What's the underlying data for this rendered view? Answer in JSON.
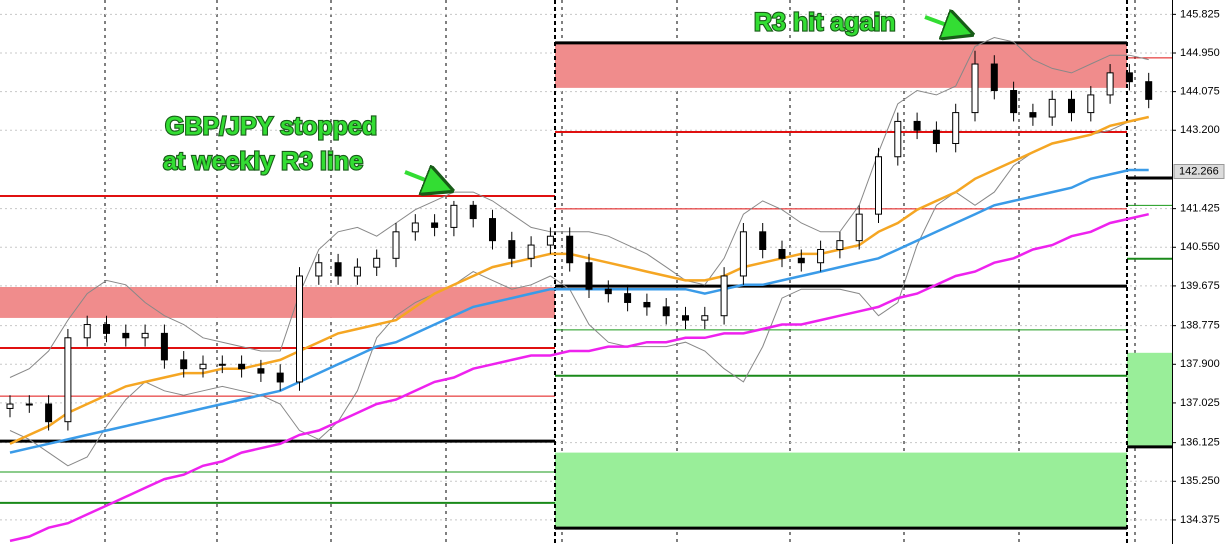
{
  "chart_data": {
    "type": "candlestick",
    "ylim": [
      133.83,
      146.15
    ],
    "yticks": [
      145.825,
      {
        "value": 144.95,
        "label": "144.950"
      },
      144.075,
      {
        "value": 143.2,
        "label": "143.200"
      },
      141.425,
      {
        "value": 140.55,
        "label": "140.550"
      },
      139.675,
      138.775,
      {
        "value": 137.9,
        "label": "137.900"
      },
      137.025,
      136.125,
      {
        "value": 135.25,
        "label": "135.250"
      },
      134.375
    ],
    "last_price": 142.266,
    "grid": true,
    "up_color": "#ffffff",
    "down_color": "#000000",
    "open": [
      136.9,
      137.0,
      137.0,
      136.6,
      138.5,
      138.8,
      138.6,
      138.5,
      138.6,
      138.0,
      137.8,
      137.9,
      137.9,
      137.8,
      137.7,
      137.5,
      139.9,
      140.2,
      139.9,
      140.1,
      140.3,
      140.9,
      141.1,
      141.0,
      141.5,
      141.2,
      140.7,
      140.3,
      140.6,
      140.8,
      140.2,
      139.6,
      139.5,
      139.3,
      139.2,
      139.0,
      138.9,
      139.0,
      139.9,
      140.9,
      140.5,
      140.3,
      140.2,
      140.5,
      140.7,
      141.3,
      142.6,
      143.4,
      143.2,
      142.9,
      143.6,
      144.7,
      144.1,
      143.6,
      143.5,
      143.9,
      143.6,
      144.0,
      144.5,
      144.3
    ],
    "high": [
      137.2,
      137.2,
      137.2,
      138.7,
      139.0,
      139.0,
      138.8,
      138.8,
      138.8,
      138.2,
      138.1,
      138.1,
      138.1,
      138.0,
      137.9,
      140.1,
      140.4,
      140.4,
      140.3,
      140.5,
      141.1,
      141.3,
      141.3,
      141.6,
      141.6,
      141.4,
      140.9,
      140.8,
      141.0,
      141.0,
      140.4,
      139.8,
      139.7,
      139.5,
      139.4,
      139.2,
      139.2,
      140.1,
      141.1,
      141.1,
      140.7,
      140.5,
      140.7,
      140.9,
      141.5,
      142.8,
      143.6,
      143.6,
      143.4,
      143.8,
      145.0,
      144.9,
      144.3,
      143.8,
      144.1,
      144.1,
      144.2,
      144.7,
      144.7,
      144.5
    ],
    "low": [
      136.7,
      136.8,
      136.4,
      136.4,
      138.3,
      138.4,
      138.3,
      138.3,
      137.8,
      137.6,
      137.6,
      137.7,
      137.6,
      137.5,
      137.3,
      137.3,
      139.7,
      139.7,
      139.7,
      139.9,
      140.1,
      140.7,
      140.8,
      140.8,
      141.0,
      140.5,
      140.1,
      140.1,
      140.4,
      140.0,
      139.4,
      139.3,
      139.1,
      139.0,
      138.8,
      138.7,
      138.7,
      138.8,
      139.7,
      140.3,
      140.1,
      140.0,
      140.0,
      140.3,
      140.5,
      141.1,
      142.4,
      143.0,
      142.7,
      142.7,
      143.4,
      143.9,
      143.4,
      143.3,
      143.3,
      143.4,
      143.4,
      143.8,
      144.1,
      143.7
    ],
    "close": [
      137.0,
      137.0,
      136.6,
      138.5,
      138.8,
      138.6,
      138.5,
      138.6,
      138.0,
      137.8,
      137.9,
      137.9,
      137.8,
      137.7,
      137.5,
      139.9,
      140.2,
      139.9,
      140.1,
      140.3,
      140.9,
      141.1,
      141.0,
      141.5,
      141.2,
      140.7,
      140.3,
      140.6,
      140.8,
      140.2,
      139.6,
      139.5,
      139.3,
      139.2,
      139.0,
      138.9,
      139.0,
      139.9,
      140.9,
      140.5,
      140.3,
      140.2,
      140.5,
      140.7,
      141.3,
      142.6,
      143.4,
      143.2,
      142.9,
      143.6,
      144.7,
      144.1,
      143.6,
      143.5,
      143.9,
      143.6,
      144.0,
      144.5,
      144.3,
      143.9
    ],
    "series": [
      {
        "color": "#888888",
        "values": [
          137.6,
          137.8,
          138.2,
          138.9,
          139.5,
          139.8,
          139.7,
          139.3,
          139.0,
          138.8,
          138.5,
          138.4,
          138.3,
          138.2,
          138.2,
          139.5,
          140.5,
          140.9,
          141.0,
          140.8,
          141.1,
          141.4,
          141.6,
          141.8,
          141.8,
          141.6,
          141.3,
          141.0,
          140.9,
          140.9,
          140.9,
          140.8,
          140.6,
          140.4,
          140.1,
          139.8,
          139.7,
          140.3,
          141.3,
          141.6,
          141.4,
          141.1,
          140.9,
          140.9,
          141.5,
          142.7,
          143.8,
          144.1,
          144.0,
          144.2,
          145.1,
          145.3,
          145.2,
          144.8,
          144.6,
          144.5,
          144.7,
          144.9,
          144.9,
          144.8
        ]
      },
      {
        "color": "#888888",
        "values": [
          136.4,
          136.2,
          135.9,
          135.6,
          135.8,
          136.5,
          137.1,
          137.5,
          137.3,
          137.2,
          137.3,
          137.4,
          137.3,
          137.2,
          137.0,
          136.4,
          136.2,
          136.6,
          137.3,
          138.5,
          139.0,
          139.3,
          139.5,
          139.7,
          140.0,
          139.8,
          139.6,
          139.7,
          139.9,
          139.6,
          138.8,
          138.4,
          138.3,
          138.3,
          138.3,
          138.4,
          138.2,
          137.8,
          137.5,
          138.3,
          139.4,
          139.6,
          139.6,
          139.6,
          139.5,
          139.0,
          139.3,
          140.6,
          141.5,
          141.8,
          141.5,
          141.8,
          142.4,
          142.7,
          142.9,
          143.0,
          143.1,
          143.2,
          143.4,
          143.5
        ]
      },
      {
        "color": "#f5a623",
        "values": [
          136.1,
          136.3,
          136.5,
          136.8,
          137.0,
          137.2,
          137.4,
          137.5,
          137.6,
          137.7,
          137.7,
          137.8,
          137.8,
          137.9,
          138.0,
          138.2,
          138.4,
          138.6,
          138.7,
          138.8,
          138.9,
          139.2,
          139.5,
          139.7,
          139.9,
          140.1,
          140.2,
          140.3,
          140.4,
          140.4,
          140.3,
          140.2,
          140.1,
          140.0,
          139.9,
          139.8,
          139.8,
          139.9,
          140.1,
          140.2,
          140.3,
          140.4,
          140.4,
          140.5,
          140.6,
          140.9,
          141.1,
          141.4,
          141.6,
          141.8,
          142.1,
          142.3,
          142.5,
          142.7,
          142.9,
          143.0,
          143.1,
          143.3,
          143.4,
          143.5
        ]
      },
      {
        "color": "#3a9be8",
        "values": [
          135.9,
          136.0,
          136.1,
          136.2,
          136.3,
          136.4,
          136.5,
          136.6,
          136.7,
          136.8,
          136.9,
          137.0,
          137.1,
          137.2,
          137.3,
          137.5,
          137.7,
          137.9,
          138.1,
          138.3,
          138.4,
          138.6,
          138.8,
          139.0,
          139.2,
          139.3,
          139.4,
          139.5,
          139.6,
          139.6,
          139.6,
          139.6,
          139.6,
          139.6,
          139.6,
          139.6,
          139.5,
          139.6,
          139.7,
          139.7,
          139.8,
          139.9,
          140.0,
          140.1,
          140.2,
          140.3,
          140.5,
          140.7,
          140.9,
          141.1,
          141.3,
          141.5,
          141.6,
          141.7,
          141.8,
          141.9,
          142.1,
          142.2,
          142.3,
          142.3
        ]
      },
      {
        "color": "#ee22ee",
        "values": [
          133.9,
          134.0,
          134.2,
          134.3,
          134.5,
          134.7,
          134.9,
          135.1,
          135.3,
          135.4,
          135.6,
          135.7,
          135.9,
          136.0,
          136.1,
          136.3,
          136.4,
          136.6,
          136.8,
          137.0,
          137.1,
          137.3,
          137.5,
          137.6,
          137.8,
          137.9,
          138.0,
          138.1,
          138.1,
          138.2,
          138.2,
          138.3,
          138.3,
          138.4,
          138.4,
          138.5,
          138.5,
          138.6,
          138.6,
          138.7,
          138.8,
          138.8,
          138.9,
          139.0,
          139.1,
          139.2,
          139.4,
          139.5,
          139.7,
          139.9,
          140.0,
          140.2,
          140.3,
          140.5,
          140.6,
          140.8,
          140.9,
          141.1,
          141.2,
          141.3
        ]
      }
    ],
    "weeks": [
      {
        "zones": [
          {
            "from": 138.95,
            "to": 139.65,
            "color": "#f08c8c"
          }
        ],
        "levels": [
          {
            "value": 141.71,
            "color": "#e01010",
            "style": "normal"
          },
          {
            "value": 138.27,
            "color": "#e01010",
            "style": "normal"
          },
          {
            "value": 137.18,
            "color": "#e01010",
            "style": "thin"
          },
          {
            "value": 136.16,
            "color": "#000000",
            "style": "thick"
          },
          {
            "value": 135.46,
            "color": "#1a9a1a",
            "style": "thin"
          },
          {
            "value": 134.76,
            "color": "#1a8a1a",
            "style": "normal"
          }
        ]
      },
      {
        "zones": [
          {
            "from": 144.16,
            "to": 145.18,
            "color": "#f08c8c"
          },
          {
            "from": 134.19,
            "to": 135.9,
            "color": "#99ee99"
          }
        ],
        "levels": [
          {
            "value": 145.18,
            "color": "#000000",
            "style": "thick"
          },
          {
            "value": 143.16,
            "color": "#e01010",
            "style": "normal"
          },
          {
            "value": 141.42,
            "color": "#e01010",
            "style": "thin"
          },
          {
            "value": 139.67,
            "color": "#000000",
            "style": "thick"
          },
          {
            "value": 138.68,
            "color": "#1a9a1a",
            "style": "thin"
          },
          {
            "value": 137.64,
            "color": "#1a8a1a",
            "style": "normal"
          },
          {
            "value": 134.19,
            "color": "#000000",
            "style": "thick"
          }
        ]
      },
      {
        "zones": [
          {
            "from": 136.03,
            "to": 138.16,
            "color": "#99ee99"
          }
        ],
        "levels": [
          {
            "value": 144.84,
            "color": "#e01010",
            "style": "thin"
          },
          {
            "value": 142.12,
            "color": "#000000",
            "style": "thick"
          },
          {
            "value": 141.5,
            "color": "#1a9a1a",
            "style": "thin"
          },
          {
            "value": 140.29,
            "color": "#1a8a1a",
            "style": "normal"
          },
          {
            "value": 136.03,
            "color": "#000000",
            "style": "thick"
          }
        ]
      }
    ],
    "annotations": [
      {
        "lines": [
          "GBP/JPY stopped",
          "at weekly R3 line"
        ]
      },
      {
        "lines": [
          "R3 hit again"
        ]
      }
    ]
  }
}
